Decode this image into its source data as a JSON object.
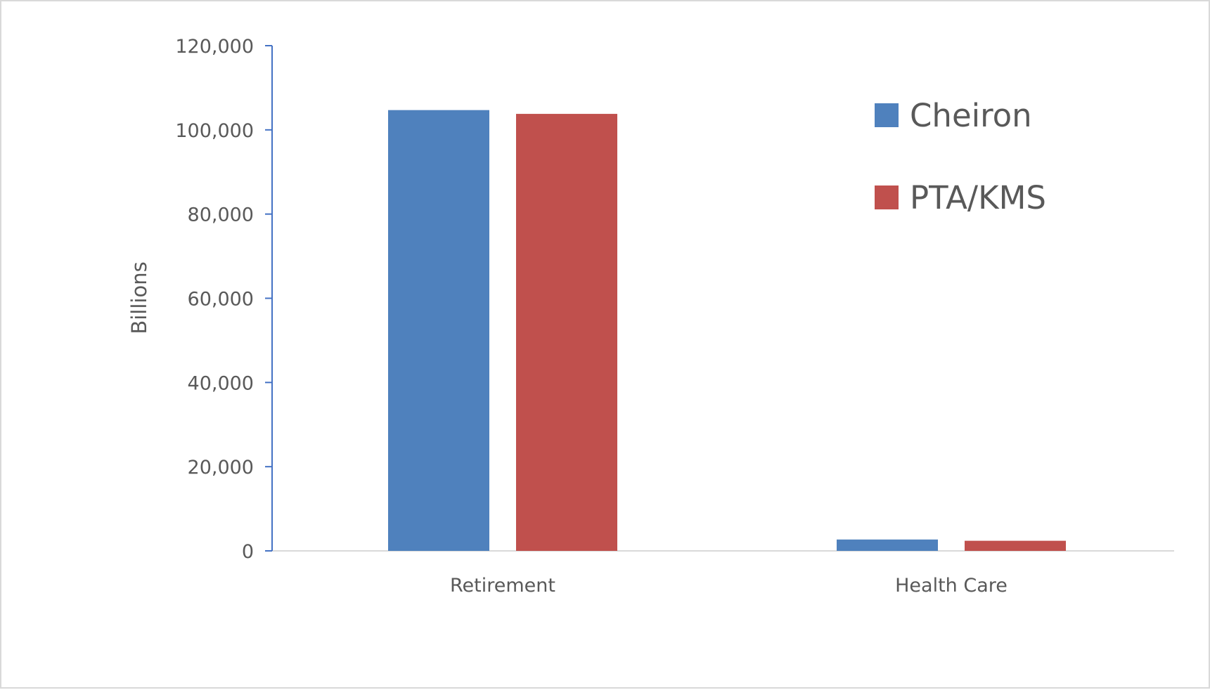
{
  "chart_data": {
    "type": "bar",
    "categories": [
      "Retirement",
      "Health Care"
    ],
    "series": [
      {
        "name": "Cheiron",
        "color": "#4f81bd",
        "values": [
          104700,
          2700
        ]
      },
      {
        "name": "PTA/KMS",
        "color": "#c0504d",
        "values": [
          103800,
          2400
        ]
      }
    ],
    "ylabel": "Billions",
    "ylim": [
      0,
      120000
    ],
    "yticks": [
      0,
      20000,
      40000,
      60000,
      80000,
      100000,
      120000
    ],
    "ytick_labels": [
      "0",
      "20,000",
      "40,000",
      "60,000",
      "80,000",
      "100,000",
      "120,000"
    ],
    "axis_color": "#4472c4",
    "baseline_color": "#d9d9d9",
    "grid": false,
    "legend_position": "top-right"
  }
}
